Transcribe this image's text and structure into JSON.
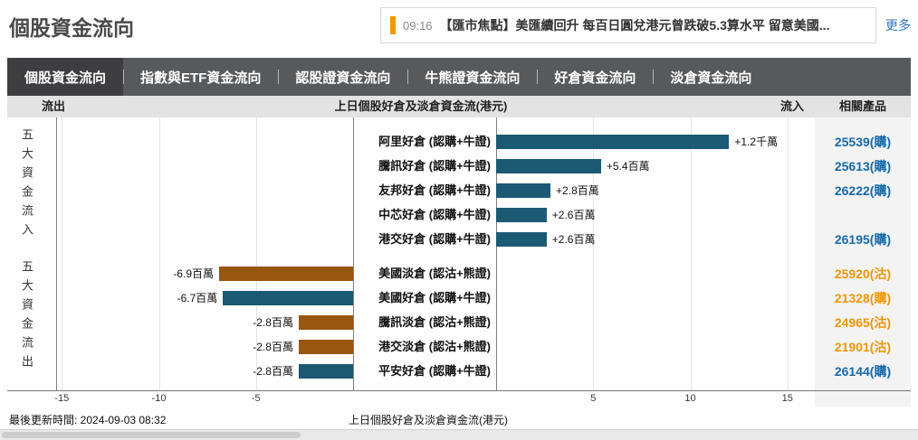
{
  "header": {
    "title": "個股資金流向",
    "ticker": {
      "accent_color": "#f39800",
      "time": "09:16",
      "headline": "【匯市焦點】美匯續回升 每百日圓兌港元曾跌破5.3算水平 留意美國...",
      "more_label": "更多"
    }
  },
  "tabs": [
    {
      "label": "個股資金流向",
      "active": true
    },
    {
      "label": "指數與ETF資金流向",
      "active": false
    },
    {
      "label": "認股證資金流向",
      "active": false
    },
    {
      "label": "牛熊證資金流向",
      "active": false
    },
    {
      "label": "好倉資金流向",
      "active": false
    },
    {
      "label": "淡倉資金流向",
      "active": false
    }
  ],
  "table_headers": {
    "outflow": "流出",
    "center": "上日個股好倉及淡倉資金流(港元)",
    "inflow": "流入",
    "products": "相關產品"
  },
  "chart_data": {
    "type": "bar",
    "title": "上日個股好倉及淡倉資金流(港元)",
    "orientation": "horizontal",
    "unit": "百萬港元",
    "xlim": [
      -17,
      17
    ],
    "x_ticks": [
      -15,
      -10,
      -5,
      5,
      10,
      15
    ],
    "grid": true,
    "group_labels": {
      "inflow": "五大資金流入",
      "outflow": "五大資金流出"
    },
    "colors": {
      "long_bar": "#1c5a74",
      "short_bar": "#99560f",
      "call_product": "#1668a8",
      "put_product": "#ee9608"
    },
    "rows": [
      {
        "label": "阿里好倉 (認購+牛證)",
        "value_millions": 12,
        "value_label": "+1.2千萬",
        "bar": "long",
        "product": "25539(購)",
        "product_color": "call"
      },
      {
        "label": "騰訊好倉 (認購+牛證)",
        "value_millions": 5.4,
        "value_label": "+5.4百萬",
        "bar": "long",
        "product": "25613(購)",
        "product_color": "call"
      },
      {
        "label": "友邦好倉 (認購+牛證)",
        "value_millions": 2.8,
        "value_label": "+2.8百萬",
        "bar": "long",
        "product": "26222(購)",
        "product_color": "call"
      },
      {
        "label": "中芯好倉 (認購+牛證)",
        "value_millions": 2.6,
        "value_label": "+2.6百萬",
        "bar": "long",
        "product": "",
        "product_color": "call"
      },
      {
        "label": "港交好倉 (認購+牛證)",
        "value_millions": 2.6,
        "value_label": "+2.6百萬",
        "bar": "long",
        "product": "26195(購)",
        "product_color": "call"
      },
      {
        "label": "美國淡倉 (認沽+熊證)",
        "value_millions": -6.9,
        "value_label": "-6.9百萬",
        "bar": "short",
        "product": "25920(沽)",
        "product_color": "put"
      },
      {
        "label": "美國好倉 (認購+牛證)",
        "value_millions": -6.7,
        "value_label": "-6.7百萬",
        "bar": "long",
        "product": "21328(購)",
        "product_color": "put"
      },
      {
        "label": "騰訊淡倉 (認沽+熊證)",
        "value_millions": -2.8,
        "value_label": "-2.8百萬",
        "bar": "short",
        "product": "24965(沽)",
        "product_color": "put"
      },
      {
        "label": "港交淡倉 (認沽+熊證)",
        "value_millions": -2.8,
        "value_label": "-2.8百萬",
        "bar": "short",
        "product": "21901(沽)",
        "product_color": "put"
      },
      {
        "label": "平安好倉 (認購+牛證)",
        "value_millions": -2.8,
        "value_label": "-2.8百萬",
        "bar": "long",
        "product": "26144(購)",
        "product_color": "call"
      }
    ]
  },
  "footer": {
    "updated": "最後更新時間: 2024-09-03 08:32",
    "axis_title": "上日個股好倉及淡倉資金流(港元)"
  }
}
